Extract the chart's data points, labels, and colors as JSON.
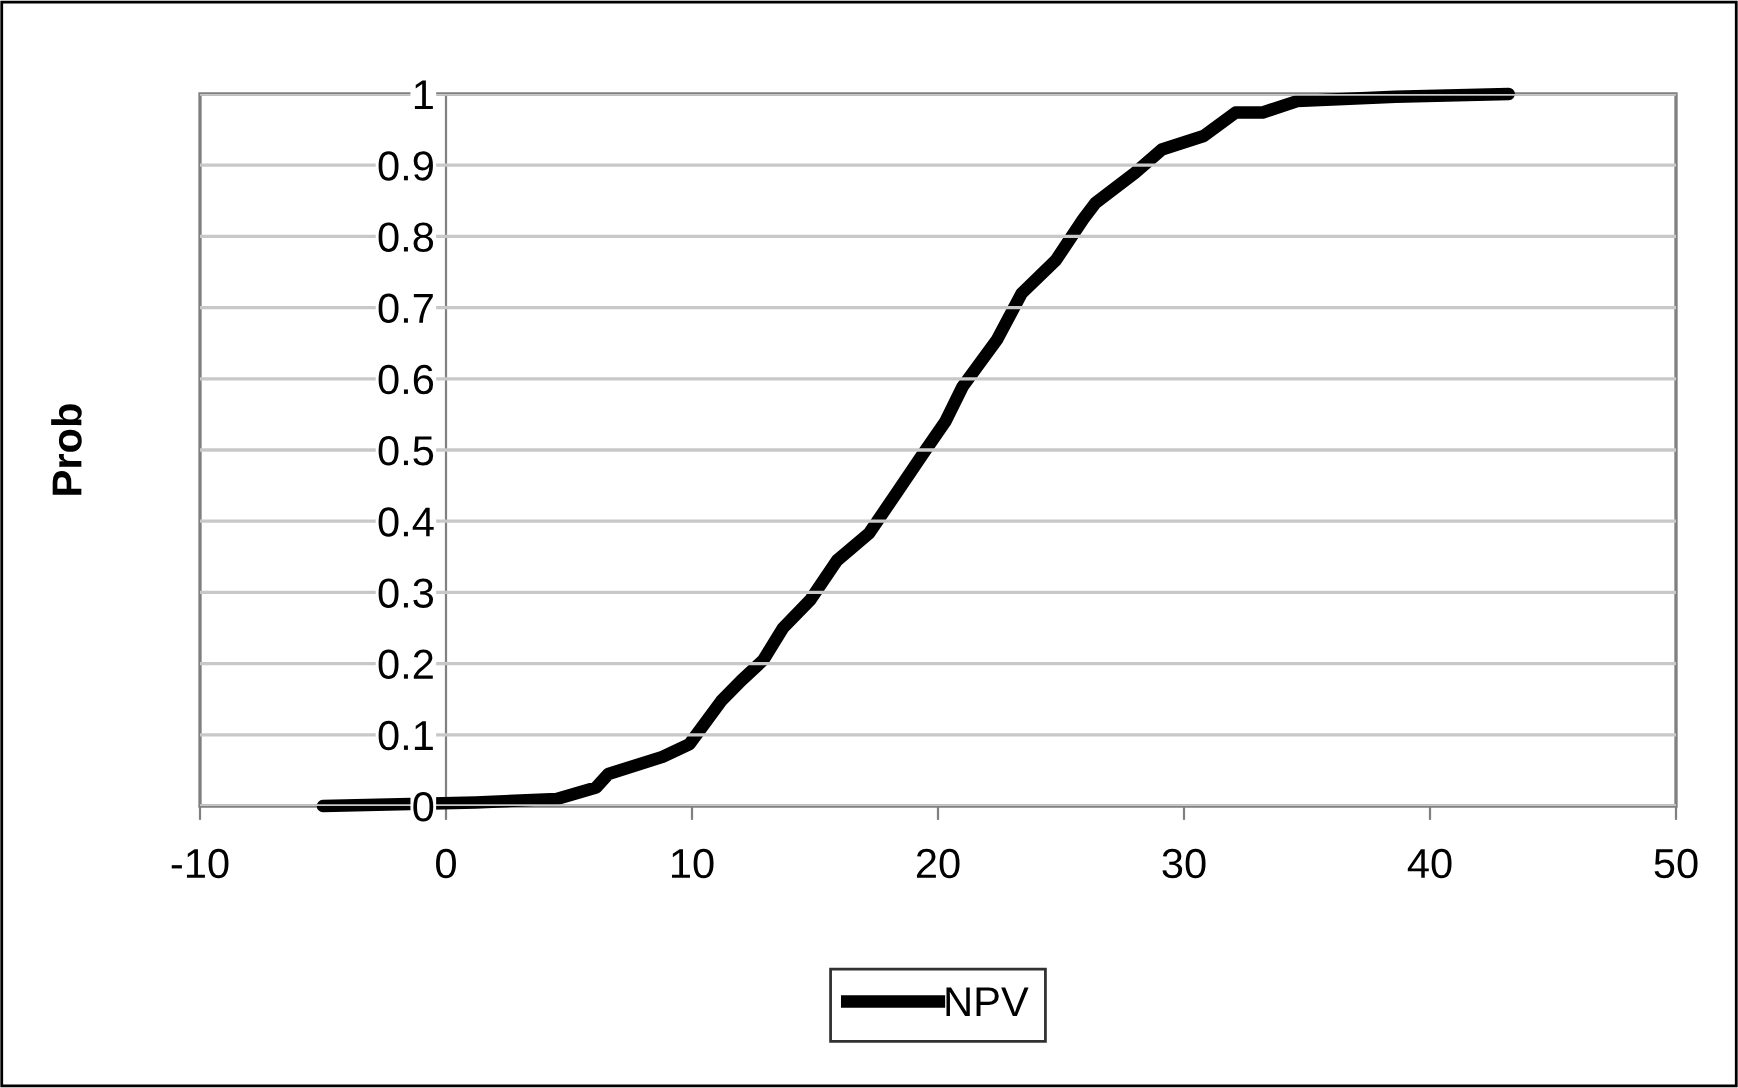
{
  "chart_data": {
    "type": "line",
    "ylabel": "Prob",
    "xlim": [
      -10,
      50
    ],
    "xticks": [
      -10,
      0,
      10,
      20,
      30,
      40,
      50
    ],
    "ylim": [
      0,
      1
    ],
    "yticks": [
      0,
      0.1,
      0.2,
      0.3,
      0.4,
      0.5,
      0.6,
      0.7,
      0.8,
      0.9,
      1
    ],
    "grid": "y",
    "legend": "bottom",
    "marker": "none",
    "line_style": "solid",
    "series": [
      {
        "name": "NPV",
        "color": "#000000",
        "x": [
          -5.0,
          1.2,
          4.5,
          6.1,
          6.6,
          8.8,
          9.9,
          11.2,
          12.0,
          12.9,
          13.7,
          14.8,
          15.9,
          17.2,
          18.3,
          19.4,
          20.3,
          21.0,
          22.4,
          23.4,
          24.8,
          25.9,
          26.4,
          28.0,
          29.1,
          30.8,
          32.1,
          33.2,
          34.6,
          36.5,
          38.6,
          43.2
        ],
        "values": [
          0,
          0.005,
          0.01,
          0.026,
          0.045,
          0.069,
          0.087,
          0.148,
          0.176,
          0.205,
          0.25,
          0.289,
          0.345,
          0.383,
          0.439,
          0.495,
          0.54,
          0.589,
          0.655,
          0.72,
          0.767,
          0.824,
          0.847,
          0.889,
          0.922,
          0.941,
          0.974,
          0.974,
          0.99,
          0.993,
          0.996,
          1.0
        ]
      }
    ]
  }
}
